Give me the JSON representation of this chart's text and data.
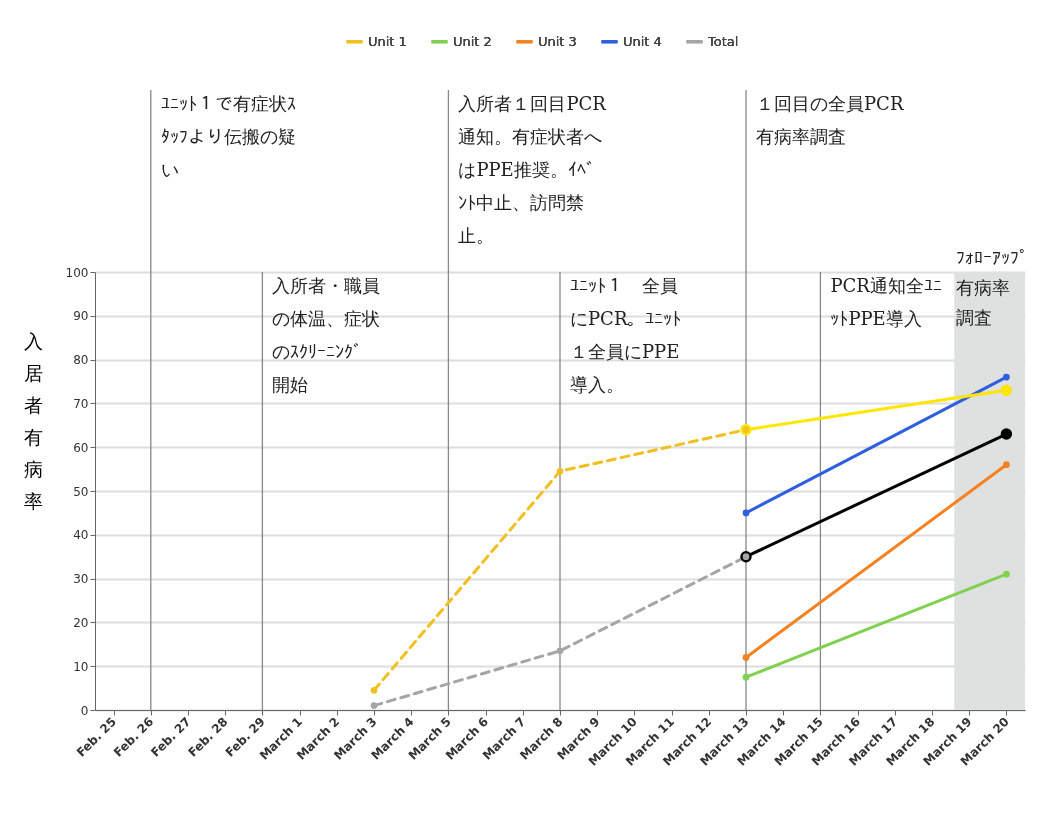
{
  "chart_data": {
    "type": "line",
    "categories": [
      "Feb. 25",
      "Feb. 26",
      "Feb. 27",
      "Feb. 28",
      "Feb. 29",
      "March 1",
      "March 2",
      "March 3",
      "March 4",
      "March 5",
      "March 6",
      "March 7",
      "March 8",
      "March 9",
      "March 10",
      "March 11",
      "March 12",
      "March 13",
      "March 14",
      "March 15",
      "March 16",
      "March 17",
      "March 18",
      "March 19",
      "March 20"
    ],
    "ylabel": "入居者有病率",
    "ylim": [
      0,
      100
    ],
    "yticks": [
      0,
      10,
      20,
      30,
      40,
      50,
      60,
      70,
      80,
      90,
      100
    ],
    "grid": "y",
    "legend": "top",
    "marker": "circle",
    "series": [
      {
        "name": "Unit 1",
        "color": "#f0c020",
        "line_style": "dashed",
        "values": [
          null,
          null,
          null,
          null,
          null,
          null,
          null,
          4.5,
          null,
          null,
          null,
          null,
          54.5,
          null,
          null,
          null,
          null,
          64,
          null,
          null,
          null,
          null,
          null,
          null,
          null
        ]
      },
      {
        "name": "Unit 2",
        "color": "#7fd14f",
        "line_style": "solid",
        "values": [
          null,
          null,
          null,
          null,
          null,
          null,
          null,
          null,
          null,
          null,
          null,
          null,
          null,
          null,
          null,
          null,
          null,
          7.5,
          null,
          null,
          null,
          null,
          null,
          null,
          31
        ]
      },
      {
        "name": "Unit 3",
        "color": "#f58220",
        "line_style": "solid",
        "values": [
          null,
          null,
          null,
          null,
          null,
          null,
          null,
          null,
          null,
          null,
          null,
          null,
          null,
          null,
          null,
          null,
          null,
          12,
          null,
          null,
          null,
          null,
          null,
          null,
          56
        ]
      },
      {
        "name": "Unit 4",
        "color": "#2f5fe0",
        "line_style": "solid",
        "values": [
          null,
          null,
          null,
          null,
          null,
          null,
          null,
          null,
          null,
          null,
          null,
          null,
          null,
          null,
          null,
          null,
          null,
          45,
          null,
          null,
          null,
          null,
          null,
          null,
          76
        ]
      },
      {
        "name": "Total",
        "color": "#a5a5a5",
        "line_style": "dashed",
        "values": [
          null,
          null,
          null,
          null,
          null,
          null,
          null,
          1,
          null,
          null,
          null,
          null,
          13.5,
          null,
          null,
          null,
          null,
          35,
          null,
          null,
          null,
          null,
          null,
          null,
          null
        ]
      },
      {
        "color": "#ffe600",
        "line_style": "solid",
        "values": [
          null,
          null,
          null,
          null,
          null,
          null,
          null,
          null,
          null,
          null,
          null,
          null,
          null,
          null,
          null,
          null,
          null,
          64,
          null,
          null,
          null,
          null,
          null,
          null,
          73
        ]
      },
      {
        "color": "#000000",
        "line_style": "solid",
        "values": [
          null,
          null,
          null,
          null,
          null,
          null,
          null,
          null,
          null,
          null,
          null,
          null,
          null,
          null,
          null,
          null,
          null,
          35,
          null,
          null,
          null,
          null,
          null,
          null,
          63
        ]
      }
    ],
    "ref_lines": [
      {
        "axis": "x",
        "value": "Feb. 26",
        "label": "ﾕﾆｯﾄ１で有症状ｽﾀｯﾌより伝搬の疑い",
        "color": "#888888"
      },
      {
        "axis": "x",
        "value": "Feb. 29",
        "label": "入所者・職員の体温、症状のｽｸﾘｰﾆﾝｸﾞ開始",
        "color": "#888888"
      },
      {
        "axis": "x",
        "value": "March 5",
        "label": "入所者１回目PCR通知。有症状者へはPPE推奨。ｲﾍﾞﾝﾄ中止、訪問禁止。",
        "color": "#888888"
      },
      {
        "axis": "x",
        "value": "March 8",
        "label": "ﾕﾆｯﾄ１　全員にPCR。ﾕﾆｯﾄ１全員にPPE導入。",
        "color": "#888888"
      },
      {
        "axis": "x",
        "value": "March 13",
        "label": "１回目の全員PCR有病率調査",
        "color": "#888888"
      },
      {
        "axis": "x",
        "value": "March 15",
        "label": "PCR通知全ﾕﾆｯﾄPPE導入",
        "color": "#888888"
      }
    ],
    "bands": [
      {
        "axis": "x",
        "from": "March 19",
        "to": "March 20",
        "label": "ﾌｫﾛｰｱｯﾌﾟ有病率調査",
        "color": "#dfe0e0"
      }
    ]
  }
}
